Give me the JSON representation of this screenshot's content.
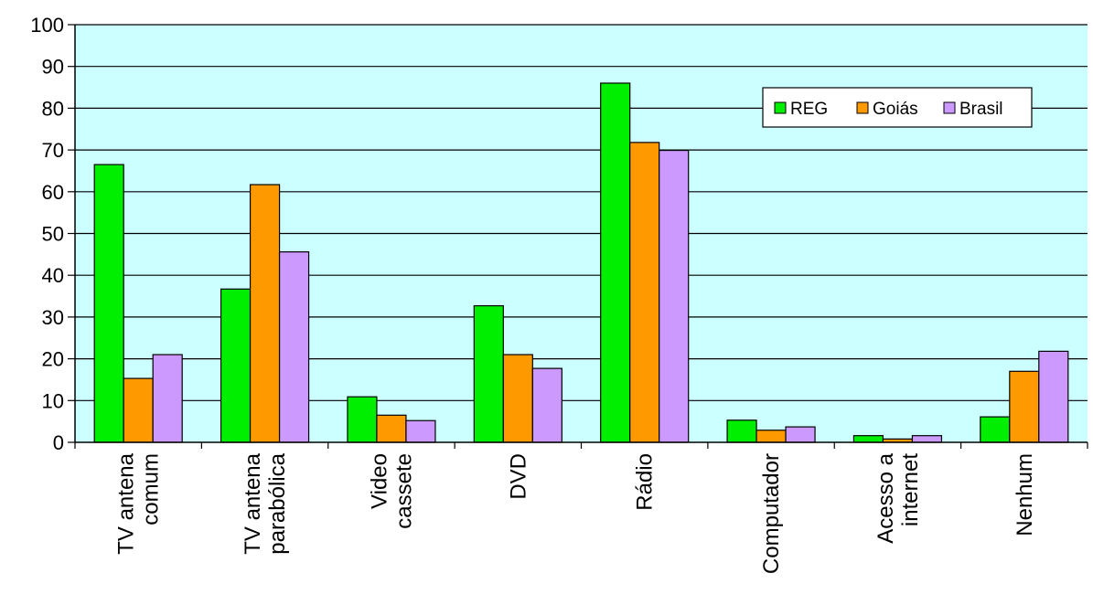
{
  "chart_data": {
    "type": "bar",
    "categories": [
      [
        "TV antena",
        "comum"
      ],
      [
        "TV antena",
        "parabólica"
      ],
      [
        "Video",
        "cassete"
      ],
      [
        "DVD"
      ],
      [
        "Rádio"
      ],
      [
        "Computador"
      ],
      [
        "Acesso a",
        "internet"
      ],
      [
        "Nenhum"
      ]
    ],
    "series": [
      {
        "name": "REG",
        "color": "#00ee00",
        "values": [
          66.5,
          36.7,
          10.9,
          32.7,
          86.0,
          5.3,
          1.6,
          6.1
        ]
      },
      {
        "name": "Goiás",
        "color": "#ff9900",
        "values": [
          15.3,
          61.7,
          6.5,
          21.0,
          71.8,
          2.9,
          0.8,
          17.0
        ]
      },
      {
        "name": "Brasil",
        "color": "#cc99ff",
        "values": [
          21.0,
          45.6,
          5.2,
          17.7,
          69.9,
          3.7,
          1.6,
          21.8
        ]
      }
    ],
    "ylim": [
      0,
      100
    ],
    "yticks": [
      0,
      10,
      20,
      30,
      40,
      50,
      60,
      70,
      80,
      90,
      100
    ],
    "plot_background": "#ccffff",
    "grid": true,
    "legend_position": "top-right"
  }
}
